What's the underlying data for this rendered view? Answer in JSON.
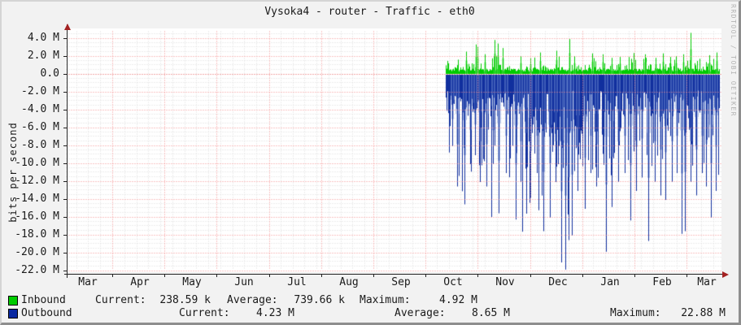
{
  "title": "Vysoka4 - router - Traffic - eth0",
  "watermark": "RRDTOOL / TOBI OETIKER",
  "y_axis_label": "bits per second",
  "colors": {
    "inbound": "#00CC00",
    "inbound_halo": "rgba(120,230,120,0.55)",
    "outbound": "#102F9E",
    "outbound_halo": "rgba(110,140,210,0.5)",
    "grid_major": "#F48A8A",
    "grid_minor": "#DADADA",
    "zero_line": "#E05050",
    "axis": "#222222",
    "arrow": "#A42222",
    "background": "#F2F2F2",
    "plot_background": "#FFFFFF",
    "watermark_text": "#B4B4B4"
  },
  "legend": {
    "inbound": {
      "label": "Inbound",
      "current_label": "Current:",
      "current": "238.59 k",
      "average_label": "Average:",
      "average": "739.66 k",
      "maximum_label": "Maximum:",
      "maximum": "4.92 M"
    },
    "outbound": {
      "label": "Outbound",
      "current_label": "Current:",
      "current": "4.23 M",
      "average_label": "Average:",
      "average": "8.65 M",
      "maximum_label": "Maximum:",
      "maximum": "22.88 M"
    }
  },
  "chart_data": {
    "type": "area",
    "title": "Vysoka4 - router - Traffic - eth0",
    "xlabel": "",
    "ylabel": "bits per second",
    "ylim_m": [
      -22.4,
      4.9
    ],
    "y_tick_step_m": 2,
    "y_tick_labels": [
      "4.0 M",
      "2.0 M",
      "0.0",
      "-2.0 M",
      "-4.0 M",
      "-6.0 M",
      "-8.0 M",
      "-10.0 M",
      "-12.0 M",
      "-14.0 M",
      "-16.0 M",
      "-18.0 M",
      "-20.0 M",
      "-22.0 M"
    ],
    "x_tick_labels": [
      "Mar",
      "Apr",
      "May",
      "Jun",
      "Jul",
      "Aug",
      "Sep",
      "Oct",
      "Nov",
      "Dec",
      "Jan",
      "Feb",
      "Mar"
    ],
    "grid": true,
    "legend_position": "bottom",
    "data_start": "mid-October",
    "note": "Inbound drawn as positive green area above zero; Outbound drawn as negative blue area below zero. No data before mid-October.",
    "series": [
      {
        "name": "Inbound",
        "sign": "positive",
        "current_m": 0.23859,
        "average_m": 0.73966,
        "maximum_m": 4.92,
        "baseline_m": 0.3,
        "spikes": [
          [
            563,
            1.6
          ],
          [
            573,
            2.5
          ],
          [
            585,
            3.3
          ],
          [
            587,
            3.0
          ],
          [
            596,
            2.2
          ],
          [
            608,
            3.8
          ],
          [
            612,
            3.4
          ],
          [
            618,
            2.9
          ],
          [
            640,
            2.0
          ],
          [
            652,
            1.8
          ],
          [
            664,
            2.4
          ],
          [
            684,
            2.6
          ],
          [
            700,
            3.9
          ],
          [
            706,
            2.0
          ],
          [
            728,
            2.3
          ],
          [
            741,
            2.2
          ],
          [
            752,
            1.8
          ],
          [
            762,
            1.9
          ],
          [
            776,
            1.7
          ],
          [
            793,
            2.2
          ],
          [
            806,
            1.8
          ],
          [
            815,
            2.3
          ],
          [
            824,
            1.9
          ],
          [
            831,
            2.0
          ],
          [
            840,
            2.2
          ],
          [
            849,
            4.6
          ],
          [
            860,
            1.7
          ],
          [
            872,
            2.1
          ],
          [
            881,
            2.4
          ]
        ]
      },
      {
        "name": "Outbound",
        "sign": "negative",
        "current_m": 4.23,
        "average_m": 8.65,
        "maximum_m": 22.88,
        "baseline_m": 3.4,
        "spikes": [
          [
            556,
            8.0
          ],
          [
            562,
            12.5
          ],
          [
            571,
            14.5
          ],
          [
            578,
            10.0
          ],
          [
            584,
            9.0
          ],
          [
            590,
            12.0
          ],
          [
            598,
            12.5
          ],
          [
            606,
            10.0
          ],
          [
            613,
            15.5
          ],
          [
            622,
            11.0
          ],
          [
            634,
            16.2
          ],
          [
            640,
            12.0
          ],
          [
            646,
            10.5
          ],
          [
            652,
            13.8
          ],
          [
            660,
            11.0
          ],
          [
            668,
            17.5
          ],
          [
            676,
            16.0
          ],
          [
            683,
            12.0
          ],
          [
            690,
            21.0
          ],
          [
            695,
            21.8
          ],
          [
            699,
            18.5
          ],
          [
            703,
            18.0
          ],
          [
            710,
            13.0
          ],
          [
            719,
            15.0
          ],
          [
            726,
            11.0
          ],
          [
            733,
            12.5
          ],
          [
            745,
            19.8
          ],
          [
            752,
            14.8
          ],
          [
            760,
            12.0
          ],
          [
            768,
            11.0
          ],
          [
            775,
            16.3
          ],
          [
            782,
            13.0
          ],
          [
            789,
            11.5
          ],
          [
            797,
            18.6
          ],
          [
            805,
            12.0
          ],
          [
            812,
            13.5
          ],
          [
            818,
            14.0
          ],
          [
            826,
            12.0
          ],
          [
            832,
            11.0
          ],
          [
            838,
            17.8
          ],
          [
            842,
            17.5
          ],
          [
            849,
            12.0
          ],
          [
            856,
            13.5
          ],
          [
            863,
            11.0
          ],
          [
            868,
            12.5
          ],
          [
            874,
            16.0
          ],
          [
            880,
            13.0
          ]
        ]
      }
    ]
  }
}
